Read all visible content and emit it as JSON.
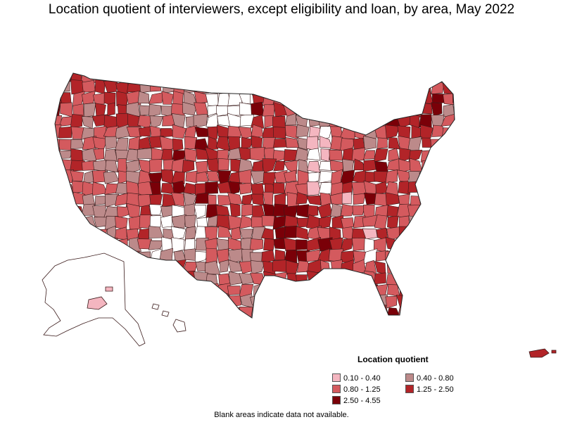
{
  "title": "Location quotient of interviewers, except eligibility and loan, by area, May 2022",
  "legend": {
    "title": "Location quotient",
    "items": [
      {
        "label": "0.10 - 0.40",
        "color": "#f4b6c0"
      },
      {
        "label": "0.40 - 0.80",
        "color": "#bc8a8a"
      },
      {
        "label": "0.80 - 1.25",
        "color": "#d45a5e"
      },
      {
        "label": "1.25 - 2.50",
        "color": "#b22428"
      },
      {
        "label": "2.50 - 4.55",
        "color": "#7a0008"
      }
    ]
  },
  "footnote": "Blank areas indicate data not available.",
  "colors": {
    "border": "#3a1a1a",
    "no_data": "#ffffff"
  }
}
